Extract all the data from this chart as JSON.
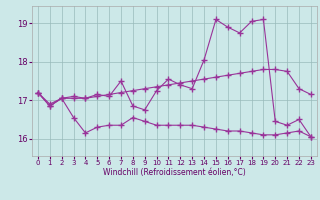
{
  "xlabel": "Windchill (Refroidissement éolien,°C)",
  "bg_color": "#cce8e8",
  "line_color": "#993399",
  "grid_color": "#99bbbb",
  "ylim": [
    15.55,
    19.45
  ],
  "xlim": [
    -0.5,
    23.5
  ],
  "yticks": [
    16,
    17,
    18,
    19
  ],
  "xticks": [
    0,
    1,
    2,
    3,
    4,
    5,
    6,
    7,
    8,
    9,
    10,
    11,
    12,
    13,
    14,
    15,
    16,
    17,
    18,
    19,
    20,
    21,
    22,
    23
  ],
  "series1_x": [
    0,
    1,
    2,
    3,
    4,
    5,
    6,
    7,
    8,
    9,
    10,
    11,
    12,
    13,
    14,
    15,
    16,
    17,
    18,
    19,
    20,
    21,
    22,
    23
  ],
  "series1_y": [
    17.2,
    16.85,
    17.05,
    16.55,
    16.15,
    16.3,
    16.35,
    16.35,
    16.55,
    16.45,
    16.35,
    16.35,
    16.35,
    16.35,
    16.3,
    16.25,
    16.2,
    16.2,
    16.15,
    16.1,
    16.1,
    16.15,
    16.2,
    16.05
  ],
  "series2_x": [
    0,
    1,
    2,
    3,
    4,
    5,
    6,
    7,
    8,
    9,
    10,
    11,
    12,
    13,
    14,
    15,
    16,
    17,
    18,
    19,
    20,
    21,
    22,
    23
  ],
  "series2_y": [
    17.2,
    16.9,
    17.05,
    17.05,
    17.05,
    17.1,
    17.15,
    17.2,
    17.25,
    17.3,
    17.35,
    17.4,
    17.45,
    17.5,
    17.55,
    17.6,
    17.65,
    17.7,
    17.75,
    17.8,
    17.8,
    17.75,
    17.3,
    17.15
  ],
  "series3_x": [
    0,
    1,
    2,
    3,
    4,
    5,
    6,
    7,
    8,
    9,
    10,
    11,
    12,
    13,
    14,
    15,
    16,
    17,
    18,
    19,
    20,
    21,
    22,
    23
  ],
  "series3_y": [
    17.2,
    16.85,
    17.05,
    17.1,
    17.05,
    17.15,
    17.1,
    17.5,
    16.85,
    16.75,
    17.25,
    17.55,
    17.4,
    17.3,
    18.05,
    19.1,
    18.9,
    18.75,
    19.05,
    19.1,
    16.45,
    16.35,
    16.5,
    16.05
  ]
}
